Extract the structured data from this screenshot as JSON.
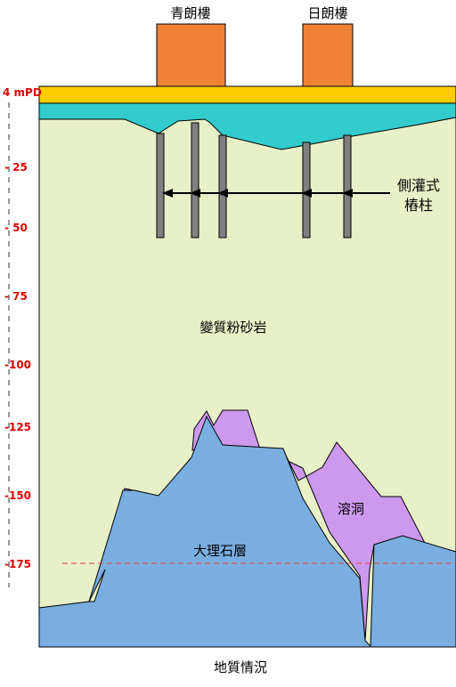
{
  "buildings": [
    {
      "label": "青朗樓"
    },
    {
      "label": "日朗樓"
    }
  ],
  "scale": {
    "ticks": [
      "4 mPD",
      "- 25",
      "- 50",
      "- 75",
      "-100",
      "-125",
      "-150",
      "-175"
    ],
    "color": "#e00000"
  },
  "labels": {
    "piles": "側灌式",
    "piles_line2": "樁柱",
    "siltstone": "變質粉砂岩",
    "cavity": "溶洞",
    "marble": "大理石層",
    "caption": "地質情況"
  },
  "colors": {
    "building": "#f08236",
    "slab": "#ffcc00",
    "fill_layer": "#33cccc",
    "siltstone": "#e8f0c8",
    "marble": "#7aaee0",
    "cavity": "#cc99ee",
    "pile": "#808080"
  }
}
